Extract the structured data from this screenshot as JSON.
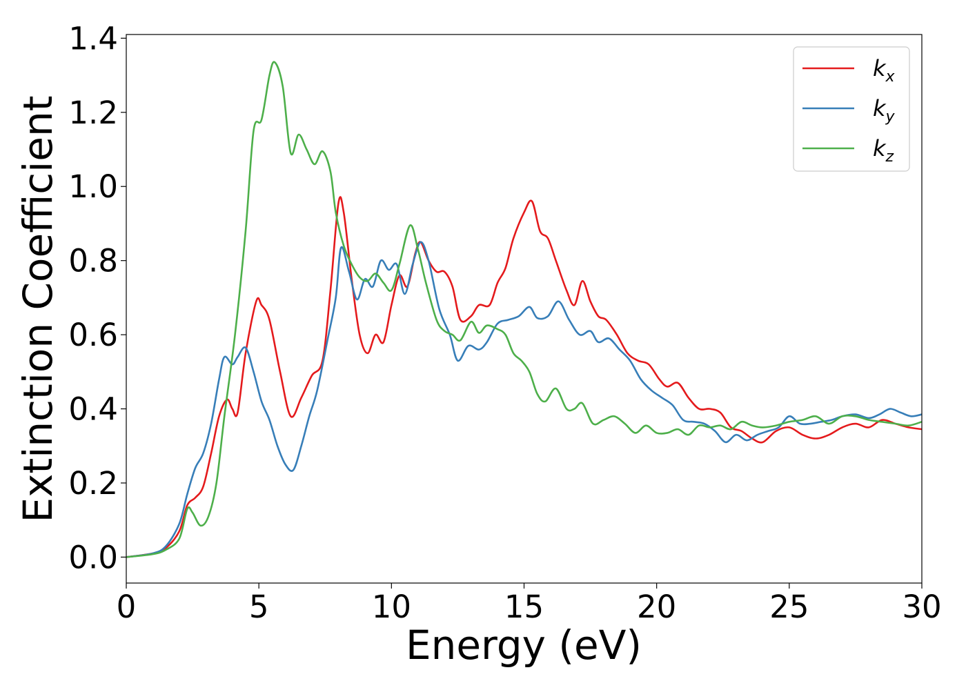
{
  "chart_data": {
    "type": "line",
    "title": "",
    "xlabel": "Energy (eV)",
    "ylabel": "Extinction Coefficient",
    "xlim": [
      0,
      30
    ],
    "ylim": [
      -0.07,
      1.41
    ],
    "xticks": [
      0,
      5,
      10,
      15,
      20,
      25,
      30
    ],
    "yticks": [
      0.0,
      0.2,
      0.4,
      0.6,
      0.8,
      1.0,
      1.2,
      1.4
    ],
    "xtick_labels": [
      "0",
      "5",
      "10",
      "15",
      "20",
      "25",
      "30"
    ],
    "ytick_labels": [
      "0.0",
      "0.2",
      "0.4",
      "0.6",
      "0.8",
      "1.0",
      "1.2",
      "1.4"
    ],
    "grid": false,
    "legend_position": "top-right",
    "series": [
      {
        "name": "k",
        "subscript": "x",
        "color": "#e41a1c",
        "points": [
          [
            0,
            0
          ],
          [
            1,
            0.01
          ],
          [
            1.5,
            0.025
          ],
          [
            2,
            0.07
          ],
          [
            2.3,
            0.14
          ],
          [
            2.6,
            0.16
          ],
          [
            2.9,
            0.19
          ],
          [
            3.2,
            0.28
          ],
          [
            3.5,
            0.38
          ],
          [
            3.8,
            0.425
          ],
          [
            4.0,
            0.4
          ],
          [
            4.2,
            0.39
          ],
          [
            4.5,
            0.55
          ],
          [
            4.9,
            0.69
          ],
          [
            5.1,
            0.68
          ],
          [
            5.4,
            0.64
          ],
          [
            5.8,
            0.5
          ],
          [
            6.2,
            0.38
          ],
          [
            6.6,
            0.43
          ],
          [
            7.0,
            0.49
          ],
          [
            7.4,
            0.53
          ],
          [
            7.7,
            0.72
          ],
          [
            8.0,
            0.955
          ],
          [
            8.2,
            0.93
          ],
          [
            8.5,
            0.75
          ],
          [
            8.8,
            0.6
          ],
          [
            9.1,
            0.55
          ],
          [
            9.4,
            0.6
          ],
          [
            9.7,
            0.58
          ],
          [
            10.0,
            0.68
          ],
          [
            10.3,
            0.76
          ],
          [
            10.6,
            0.73
          ],
          [
            10.9,
            0.82
          ],
          [
            11.1,
            0.85
          ],
          [
            11.4,
            0.8
          ],
          [
            11.7,
            0.77
          ],
          [
            12.0,
            0.77
          ],
          [
            12.3,
            0.73
          ],
          [
            12.6,
            0.64
          ],
          [
            13.0,
            0.65
          ],
          [
            13.3,
            0.68
          ],
          [
            13.7,
            0.68
          ],
          [
            14.0,
            0.74
          ],
          [
            14.3,
            0.78
          ],
          [
            14.6,
            0.86
          ],
          [
            15.0,
            0.93
          ],
          [
            15.3,
            0.96
          ],
          [
            15.6,
            0.88
          ],
          [
            15.9,
            0.86
          ],
          [
            16.2,
            0.8
          ],
          [
            16.6,
            0.72
          ],
          [
            16.9,
            0.68
          ],
          [
            17.2,
            0.745
          ],
          [
            17.5,
            0.69
          ],
          [
            17.8,
            0.65
          ],
          [
            18.1,
            0.64
          ],
          [
            18.5,
            0.6
          ],
          [
            18.9,
            0.55
          ],
          [
            19.3,
            0.53
          ],
          [
            19.7,
            0.52
          ],
          [
            20.1,
            0.48
          ],
          [
            20.4,
            0.46
          ],
          [
            20.8,
            0.47
          ],
          [
            21.2,
            0.43
          ],
          [
            21.6,
            0.4
          ],
          [
            22.0,
            0.4
          ],
          [
            22.4,
            0.39
          ],
          [
            22.8,
            0.35
          ],
          [
            23.2,
            0.34
          ],
          [
            23.6,
            0.32
          ],
          [
            24.0,
            0.31
          ],
          [
            24.5,
            0.34
          ],
          [
            25.0,
            0.35
          ],
          [
            25.5,
            0.33
          ],
          [
            26.0,
            0.32
          ],
          [
            26.5,
            0.33
          ],
          [
            27.0,
            0.35
          ],
          [
            27.5,
            0.36
          ],
          [
            28.0,
            0.35
          ],
          [
            28.5,
            0.37
          ],
          [
            29.0,
            0.36
          ],
          [
            29.5,
            0.35
          ],
          [
            30.0,
            0.345
          ]
        ]
      },
      {
        "name": "k",
        "subscript": "y",
        "color": "#377eb8",
        "points": [
          [
            0,
            0
          ],
          [
            1,
            0.01
          ],
          [
            1.5,
            0.03
          ],
          [
            2,
            0.09
          ],
          [
            2.3,
            0.17
          ],
          [
            2.6,
            0.24
          ],
          [
            2.9,
            0.28
          ],
          [
            3.2,
            0.36
          ],
          [
            3.5,
            0.48
          ],
          [
            3.7,
            0.54
          ],
          [
            4.0,
            0.52
          ],
          [
            4.2,
            0.54
          ],
          [
            4.5,
            0.565
          ],
          [
            4.8,
            0.5
          ],
          [
            5.1,
            0.42
          ],
          [
            5.4,
            0.37
          ],
          [
            5.7,
            0.3
          ],
          [
            6.0,
            0.25
          ],
          [
            6.3,
            0.235
          ],
          [
            6.6,
            0.3
          ],
          [
            6.9,
            0.38
          ],
          [
            7.2,
            0.45
          ],
          [
            7.6,
            0.59
          ],
          [
            7.9,
            0.7
          ],
          [
            8.1,
            0.835
          ],
          [
            8.4,
            0.77
          ],
          [
            8.7,
            0.695
          ],
          [
            9.0,
            0.75
          ],
          [
            9.3,
            0.73
          ],
          [
            9.6,
            0.8
          ],
          [
            9.9,
            0.775
          ],
          [
            10.2,
            0.79
          ],
          [
            10.5,
            0.71
          ],
          [
            10.8,
            0.79
          ],
          [
            11.1,
            0.85
          ],
          [
            11.4,
            0.8
          ],
          [
            11.8,
            0.67
          ],
          [
            12.2,
            0.6
          ],
          [
            12.5,
            0.53
          ],
          [
            12.9,
            0.57
          ],
          [
            13.3,
            0.56
          ],
          [
            13.6,
            0.58
          ],
          [
            14.0,
            0.63
          ],
          [
            14.4,
            0.64
          ],
          [
            14.8,
            0.65
          ],
          [
            15.2,
            0.675
          ],
          [
            15.5,
            0.645
          ],
          [
            15.9,
            0.65
          ],
          [
            16.3,
            0.69
          ],
          [
            16.7,
            0.64
          ],
          [
            17.1,
            0.6
          ],
          [
            17.5,
            0.61
          ],
          [
            17.8,
            0.58
          ],
          [
            18.2,
            0.59
          ],
          [
            18.6,
            0.56
          ],
          [
            19.0,
            0.53
          ],
          [
            19.4,
            0.48
          ],
          [
            19.8,
            0.45
          ],
          [
            20.2,
            0.43
          ],
          [
            20.6,
            0.41
          ],
          [
            21.0,
            0.37
          ],
          [
            21.4,
            0.365
          ],
          [
            21.8,
            0.36
          ],
          [
            22.2,
            0.34
          ],
          [
            22.6,
            0.31
          ],
          [
            23.0,
            0.33
          ],
          [
            23.4,
            0.315
          ],
          [
            23.8,
            0.33
          ],
          [
            24.2,
            0.34
          ],
          [
            24.6,
            0.35
          ],
          [
            25.0,
            0.38
          ],
          [
            25.4,
            0.36
          ],
          [
            25.8,
            0.36
          ],
          [
            26.2,
            0.365
          ],
          [
            26.6,
            0.37
          ],
          [
            27.0,
            0.38
          ],
          [
            27.5,
            0.385
          ],
          [
            28.0,
            0.375
          ],
          [
            28.4,
            0.385
          ],
          [
            28.8,
            0.4
          ],
          [
            29.2,
            0.39
          ],
          [
            29.6,
            0.38
          ],
          [
            30.0,
            0.385
          ]
        ]
      },
      {
        "name": "k",
        "subscript": "z",
        "color": "#4daf4a",
        "points": [
          [
            0,
            0
          ],
          [
            1,
            0.008
          ],
          [
            1.5,
            0.02
          ],
          [
            2,
            0.05
          ],
          [
            2.3,
            0.13
          ],
          [
            2.5,
            0.12
          ],
          [
            2.8,
            0.085
          ],
          [
            3.1,
            0.11
          ],
          [
            3.4,
            0.2
          ],
          [
            3.7,
            0.38
          ],
          [
            4.1,
            0.6
          ],
          [
            4.5,
            0.88
          ],
          [
            4.8,
            1.15
          ],
          [
            5.1,
            1.18
          ],
          [
            5.4,
            1.3
          ],
          [
            5.6,
            1.335
          ],
          [
            5.9,
            1.27
          ],
          [
            6.2,
            1.09
          ],
          [
            6.5,
            1.14
          ],
          [
            6.8,
            1.1
          ],
          [
            7.1,
            1.06
          ],
          [
            7.4,
            1.095
          ],
          [
            7.7,
            1.04
          ],
          [
            7.9,
            0.93
          ],
          [
            8.2,
            0.84
          ],
          [
            8.5,
            0.79
          ],
          [
            8.8,
            0.755
          ],
          [
            9.1,
            0.745
          ],
          [
            9.4,
            0.765
          ],
          [
            9.7,
            0.74
          ],
          [
            10.0,
            0.72
          ],
          [
            10.3,
            0.79
          ],
          [
            10.7,
            0.895
          ],
          [
            11.0,
            0.83
          ],
          [
            11.3,
            0.74
          ],
          [
            11.7,
            0.64
          ],
          [
            12.0,
            0.61
          ],
          [
            12.3,
            0.6
          ],
          [
            12.6,
            0.585
          ],
          [
            13.0,
            0.635
          ],
          [
            13.3,
            0.605
          ],
          [
            13.6,
            0.625
          ],
          [
            14.0,
            0.615
          ],
          [
            14.3,
            0.6
          ],
          [
            14.6,
            0.55
          ],
          [
            14.9,
            0.53
          ],
          [
            15.2,
            0.5
          ],
          [
            15.5,
            0.44
          ],
          [
            15.8,
            0.42
          ],
          [
            16.2,
            0.455
          ],
          [
            16.6,
            0.4
          ],
          [
            16.9,
            0.4
          ],
          [
            17.2,
            0.415
          ],
          [
            17.6,
            0.36
          ],
          [
            18.0,
            0.37
          ],
          [
            18.4,
            0.38
          ],
          [
            18.8,
            0.36
          ],
          [
            19.2,
            0.335
          ],
          [
            19.6,
            0.355
          ],
          [
            20.0,
            0.335
          ],
          [
            20.4,
            0.335
          ],
          [
            20.8,
            0.345
          ],
          [
            21.2,
            0.33
          ],
          [
            21.6,
            0.355
          ],
          [
            22.0,
            0.35
          ],
          [
            22.4,
            0.355
          ],
          [
            22.8,
            0.345
          ],
          [
            23.2,
            0.365
          ],
          [
            23.6,
            0.355
          ],
          [
            24.0,
            0.35
          ],
          [
            24.5,
            0.355
          ],
          [
            25.0,
            0.365
          ],
          [
            25.5,
            0.37
          ],
          [
            26.0,
            0.38
          ],
          [
            26.5,
            0.36
          ],
          [
            27.0,
            0.38
          ],
          [
            27.5,
            0.38
          ],
          [
            28.0,
            0.37
          ],
          [
            28.5,
            0.365
          ],
          [
            29.0,
            0.36
          ],
          [
            29.5,
            0.355
          ],
          [
            30.0,
            0.365
          ]
        ]
      }
    ]
  }
}
